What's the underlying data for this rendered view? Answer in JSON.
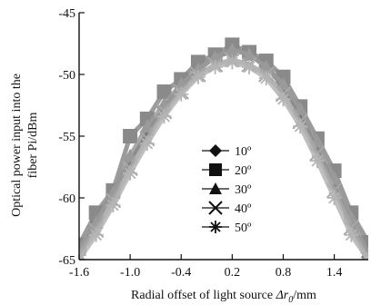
{
  "chart_data": {
    "type": "line",
    "title": "",
    "xlabel_prefix": "Radial offset of light source ",
    "xlabel_symbol": "Δr",
    "xlabel_subscript": "0",
    "xlabel_suffix": "/mm",
    "ylabel_line1": "Optical power input into the",
    "ylabel_line2": "fiber Pi/dBm",
    "xlim": [
      -1.6,
      1.8
    ],
    "ylim": [
      -65,
      -45
    ],
    "xticks": [
      -1.6,
      -1.0,
      -0.4,
      0.2,
      0.8,
      1.4
    ],
    "xtick_labels": [
      "-1.6",
      "-1.0",
      "-0.4",
      "0.2",
      "0.8",
      "1.4"
    ],
    "yticks": [
      -65,
      -60,
      -55,
      -50,
      -45
    ],
    "ytick_labels": [
      "-65",
      "-60",
      "-55",
      "-50",
      "-45"
    ],
    "legend_position": "center",
    "series": [
      {
        "name": "10º",
        "marker": "diamond",
        "color": "#6e6e6e",
        "x": [
          -1.6,
          -1.4,
          -1.2,
          -1.0,
          -0.8,
          -0.6,
          -0.4,
          -0.2,
          0.0,
          0.2,
          0.4,
          0.6,
          0.8,
          1.0,
          1.2,
          1.4,
          1.6,
          1.8
        ],
        "y": [
          -64.5,
          -62.0,
          -59.5,
          -57.0,
          -54.8,
          -52.7,
          -51.0,
          -49.6,
          -48.6,
          -48.1,
          -48.3,
          -49.3,
          -51.0,
          -53.3,
          -56.0,
          -59.0,
          -62.0,
          -64.8
        ]
      },
      {
        "name": "20º",
        "marker": "square",
        "color": "#8a8a8a",
        "x": [
          -1.6,
          -1.4,
          -1.2,
          -1.0,
          -0.8,
          -0.6,
          -0.4,
          -0.2,
          0.0,
          0.2,
          0.4,
          0.6,
          0.8,
          1.0,
          1.2,
          1.4,
          1.6,
          1.8
        ],
        "y": [
          -63.8,
          -61.2,
          -59.4,
          -55.0,
          -53.6,
          -51.4,
          -50.4,
          -49.0,
          -48.4,
          -47.6,
          -48.2,
          -48.9,
          -50.2,
          -52.6,
          -55.2,
          -57.8,
          -61.2,
          -63.6
        ]
      },
      {
        "name": "30º",
        "marker": "triangle",
        "color": "#9a9a9a",
        "x": [
          -1.6,
          -1.4,
          -1.2,
          -1.0,
          -0.8,
          -0.6,
          -0.4,
          -0.2,
          0.0,
          0.2,
          0.4,
          0.6,
          0.8,
          1.0,
          1.2,
          1.4,
          1.6,
          1.8
        ],
        "y": [
          -64.2,
          -62.0,
          -59.6,
          -56.6,
          -54.2,
          -52.4,
          -50.8,
          -49.6,
          -48.6,
          -48.0,
          -48.4,
          -49.4,
          -50.8,
          -52.8,
          -55.4,
          -58.4,
          -61.6,
          -64.6
        ]
      },
      {
        "name": "40º",
        "marker": "x",
        "color": "#a8a8a8",
        "x": [
          -1.6,
          -1.4,
          -1.2,
          -1.0,
          -0.8,
          -0.6,
          -0.4,
          -0.2,
          0.0,
          0.2,
          0.4,
          0.6,
          0.8,
          1.0,
          1.2,
          1.4,
          1.6,
          1.8
        ],
        "y": [
          -64.6,
          -62.6,
          -60.2,
          -57.6,
          -55.2,
          -53.0,
          -51.4,
          -50.0,
          -49.2,
          -48.8,
          -49.2,
          -50.0,
          -51.6,
          -53.8,
          -56.4,
          -59.4,
          -62.4,
          -65.0
        ]
      },
      {
        "name": "50º",
        "marker": "asterisk",
        "color": "#b4b4b4",
        "x": [
          -1.6,
          -1.4,
          -1.2,
          -1.0,
          -0.8,
          -0.6,
          -0.4,
          -0.2,
          0.0,
          0.2,
          0.4,
          0.6,
          0.8,
          1.0,
          1.2,
          1.4,
          1.6,
          1.8
        ],
        "y": [
          -65.0,
          -63.0,
          -60.6,
          -58.0,
          -55.6,
          -53.4,
          -51.6,
          -50.2,
          -49.4,
          -49.0,
          -49.4,
          -50.3,
          -52.0,
          -54.2,
          -57.0,
          -60.0,
          -63.0,
          -65.0
        ]
      }
    ]
  }
}
